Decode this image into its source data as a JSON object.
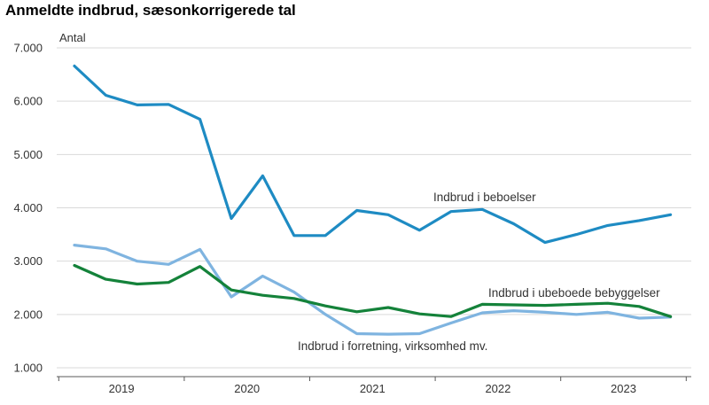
{
  "chart_data": {
    "type": "line",
    "title": "Anmeldte indbrud, sæsonkorrigerede tal",
    "ylabel": "Antal",
    "xlabel": "",
    "ylim": [
      1000,
      7000
    ],
    "yticks": [
      "1.000",
      "2.000",
      "3.000",
      "4.000",
      "5.000",
      "6.000",
      "7.000"
    ],
    "xticks": [
      "2019",
      "2020",
      "2021",
      "2022",
      "2023"
    ],
    "grid": true,
    "x": [
      "2019K1",
      "2019K2",
      "2019K3",
      "2019K4",
      "2020K1",
      "2020K2",
      "2020K3",
      "2020K4",
      "2021K1",
      "2021K2",
      "2021K3",
      "2021K4",
      "2022K1",
      "2022K2",
      "2022K3",
      "2022K4",
      "2023K1",
      "2023K2",
      "2023K3",
      "2023K4"
    ],
    "series": [
      {
        "name": "Indbrud i beboelser",
        "color": "#1e8bc3",
        "values": [
          6660,
          6110,
          5930,
          5940,
          5660,
          3800,
          4600,
          3480,
          3480,
          3950,
          3870,
          3580,
          3930,
          3970,
          3700,
          3350,
          3500,
          3670,
          3760,
          3870
        ]
      },
      {
        "name": "Indbrud i forretning, virksomhed mv.",
        "color": "#7fb4e0",
        "values": [
          3300,
          3230,
          3000,
          2940,
          3220,
          2330,
          2720,
          2420,
          2000,
          1640,
          1630,
          1640,
          1840,
          2030,
          2070,
          2040,
          2000,
          2040,
          1930,
          1950
        ]
      },
      {
        "name": "Indbrud i ubeboede bebyggelser",
        "color": "#14823a",
        "values": [
          2920,
          2660,
          2570,
          2600,
          2900,
          2460,
          2360,
          2300,
          2160,
          2050,
          2130,
          2010,
          1960,
          2190,
          2180,
          2170,
          2190,
          2210,
          2150,
          1960
        ]
      }
    ]
  }
}
